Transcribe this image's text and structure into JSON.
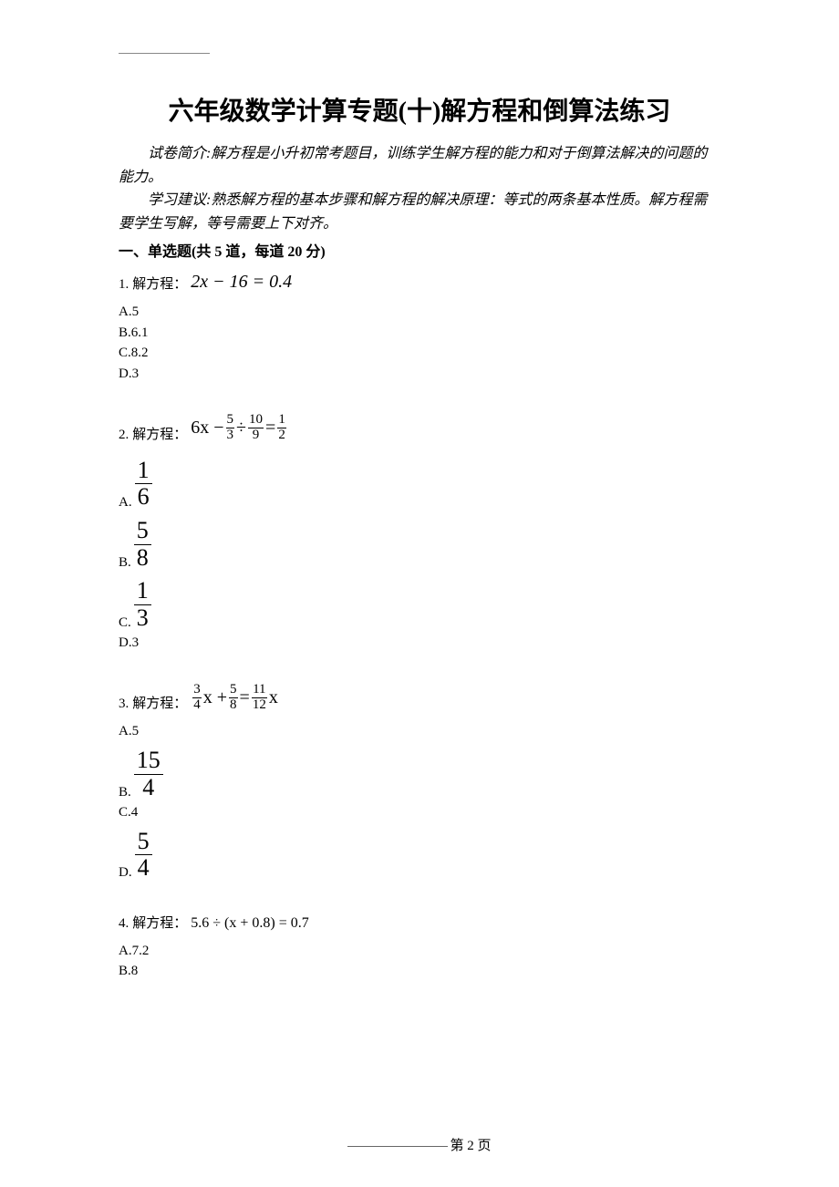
{
  "title": "六年级数学计算专题(十)解方程和倒算法练习",
  "intro": {
    "line1_label": "试卷简介:",
    "line1_text": "解方程是小升初常考题目，训练学生解方程的能力和对于倒算法解决的问题的能力。",
    "line2_label": "学习建议:",
    "line2_text": "熟悉解方程的基本步骤和解方程的解决原理：等式的两条基本性质。解方程需要学生写解，等号需要上下对齐。"
  },
  "section_header": "一、单选题(共 5 道，每道 20 分)",
  "questions": [
    {
      "number": "1.",
      "prompt": "解方程：",
      "equation_plain": "2x − 16 = 0.4",
      "options": [
        {
          "label": "A.",
          "value": "5"
        },
        {
          "label": "B.",
          "value": "6.1"
        },
        {
          "label": "C.",
          "value": "8.2"
        },
        {
          "label": "D.",
          "value": "3"
        }
      ]
    },
    {
      "number": "2.",
      "prompt": "解方程：",
      "equation_frac": {
        "lhs_coef": "6x −",
        "f1n": "5",
        "f1d": "3",
        "op1": "÷",
        "f2n": "10",
        "f2d": "9",
        "eq": "=",
        "f3n": "1",
        "f3d": "2"
      },
      "options": [
        {
          "label": "A.",
          "frac": {
            "n": "1",
            "d": "6"
          }
        },
        {
          "label": "B.",
          "frac": {
            "n": "5",
            "d": "8"
          }
        },
        {
          "label": "C.",
          "frac": {
            "n": "1",
            "d": "3"
          }
        },
        {
          "label": "D.",
          "value": "3"
        }
      ]
    },
    {
      "number": "3.",
      "prompt": "解方程：",
      "equation_frac2": {
        "f1n": "3",
        "f1d": "4",
        "t1": "x +",
        "f2n": "5",
        "f2d": "8",
        "eq": "=",
        "f3n": "11",
        "f3d": "12",
        "t2": "x"
      },
      "options": [
        {
          "label": "A.",
          "value": "5"
        },
        {
          "label": "B.",
          "frac": {
            "n": "15",
            "d": "4"
          }
        },
        {
          "label": "C.",
          "value": "4"
        },
        {
          "label": "D.",
          "frac": {
            "n": "5",
            "d": "4"
          }
        }
      ]
    },
    {
      "number": "4.",
      "prompt": "解方程：",
      "equation_plain": "5.6 ÷ (x + 0.8) = 0.7",
      "options": [
        {
          "label": "A.",
          "value": "7.2"
        },
        {
          "label": "B.",
          "value": "8"
        }
      ]
    }
  ],
  "footer": {
    "text": "第 2 页"
  }
}
